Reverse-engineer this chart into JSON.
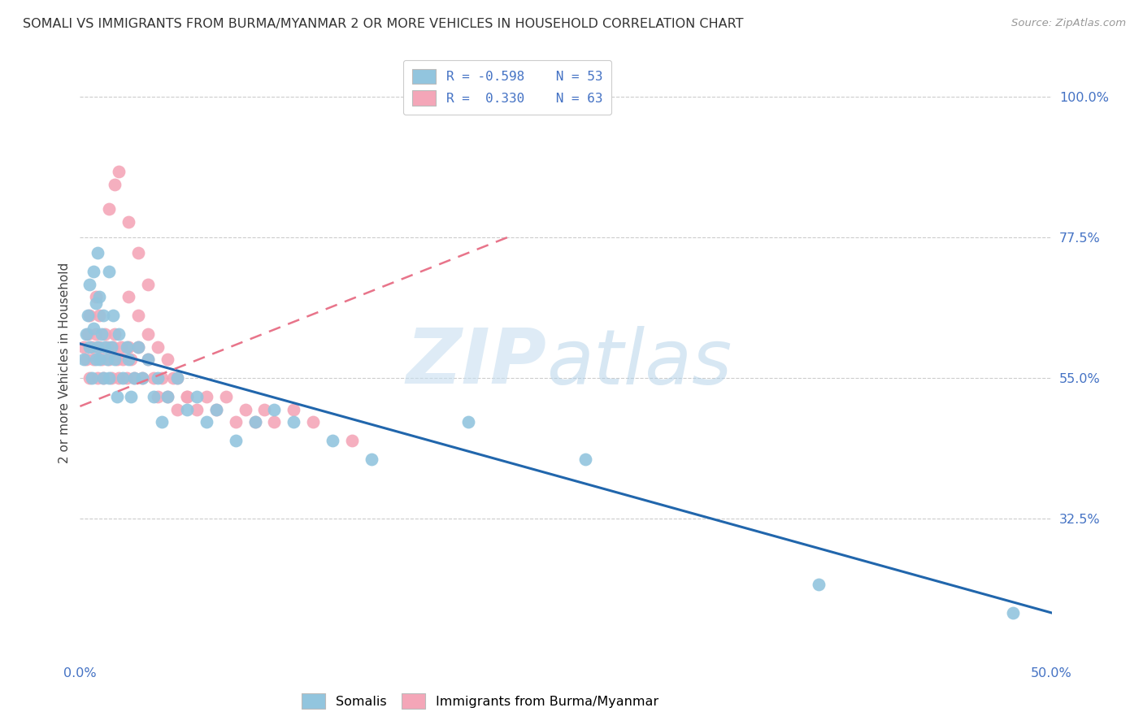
{
  "title": "SOMALI VS IMMIGRANTS FROM BURMA/MYANMAR 2 OR MORE VEHICLES IN HOUSEHOLD CORRELATION CHART",
  "source": "Source: ZipAtlas.com",
  "ylabel": "2 or more Vehicles in Household",
  "ytick_positions": [
    0.325,
    0.55,
    0.775,
    1.0
  ],
  "ytick_labels": [
    "32.5%",
    "55.0%",
    "77.5%",
    "100.0%"
  ],
  "xtick_positions": [
    0.0,
    0.5
  ],
  "xtick_labels": [
    "0.0%",
    "50.0%"
  ],
  "xmin": 0.0,
  "xmax": 0.5,
  "ymin": 0.1,
  "ymax": 1.05,
  "blue_color": "#92c5de",
  "pink_color": "#f4a6b8",
  "blue_line_color": "#2166ac",
  "pink_line_color": "#e8748a",
  "blue_line_x": [
    0.0,
    0.5
  ],
  "blue_line_y": [
    0.605,
    0.175
  ],
  "pink_line_x": [
    0.0,
    0.22
  ],
  "pink_line_y": [
    0.505,
    0.775
  ],
  "somali_x": [
    0.002,
    0.003,
    0.004,
    0.005,
    0.005,
    0.006,
    0.007,
    0.007,
    0.008,
    0.008,
    0.009,
    0.009,
    0.01,
    0.01,
    0.011,
    0.012,
    0.012,
    0.013,
    0.014,
    0.015,
    0.015,
    0.016,
    0.017,
    0.018,
    0.019,
    0.02,
    0.022,
    0.024,
    0.025,
    0.026,
    0.028,
    0.03,
    0.032,
    0.035,
    0.038,
    0.04,
    0.042,
    0.045,
    0.05,
    0.055,
    0.06,
    0.065,
    0.07,
    0.08,
    0.09,
    0.1,
    0.11,
    0.13,
    0.15,
    0.2,
    0.26,
    0.38,
    0.48
  ],
  "somali_y": [
    0.58,
    0.62,
    0.65,
    0.6,
    0.7,
    0.55,
    0.63,
    0.72,
    0.58,
    0.67,
    0.6,
    0.75,
    0.58,
    0.68,
    0.62,
    0.55,
    0.65,
    0.6,
    0.58,
    0.72,
    0.55,
    0.6,
    0.65,
    0.58,
    0.52,
    0.62,
    0.55,
    0.6,
    0.58,
    0.52,
    0.55,
    0.6,
    0.55,
    0.58,
    0.52,
    0.55,
    0.48,
    0.52,
    0.55,
    0.5,
    0.52,
    0.48,
    0.5,
    0.45,
    0.48,
    0.5,
    0.48,
    0.45,
    0.42,
    0.48,
    0.42,
    0.22,
    0.175
  ],
  "burma_x": [
    0.002,
    0.003,
    0.004,
    0.005,
    0.005,
    0.006,
    0.007,
    0.008,
    0.008,
    0.009,
    0.01,
    0.01,
    0.011,
    0.012,
    0.013,
    0.014,
    0.015,
    0.016,
    0.017,
    0.018,
    0.019,
    0.02,
    0.021,
    0.022,
    0.024,
    0.025,
    0.026,
    0.028,
    0.03,
    0.032,
    0.035,
    0.038,
    0.04,
    0.042,
    0.045,
    0.048,
    0.05,
    0.055,
    0.06,
    0.065,
    0.07,
    0.075,
    0.08,
    0.085,
    0.09,
    0.095,
    0.1,
    0.11,
    0.12,
    0.14,
    0.015,
    0.018,
    0.02,
    0.025,
    0.03,
    0.035,
    0.025,
    0.03,
    0.035,
    0.04,
    0.045,
    0.05,
    0.055
  ],
  "burma_y": [
    0.6,
    0.58,
    0.62,
    0.55,
    0.65,
    0.6,
    0.58,
    0.62,
    0.68,
    0.55,
    0.6,
    0.65,
    0.58,
    0.55,
    0.62,
    0.6,
    0.58,
    0.55,
    0.6,
    0.62,
    0.58,
    0.55,
    0.6,
    0.58,
    0.55,
    0.6,
    0.58,
    0.55,
    0.6,
    0.55,
    0.58,
    0.55,
    0.52,
    0.55,
    0.52,
    0.55,
    0.5,
    0.52,
    0.5,
    0.52,
    0.5,
    0.52,
    0.48,
    0.5,
    0.48,
    0.5,
    0.48,
    0.5,
    0.48,
    0.45,
    0.82,
    0.86,
    0.88,
    0.8,
    0.75,
    0.7,
    0.68,
    0.65,
    0.62,
    0.6,
    0.58,
    0.55,
    0.52
  ]
}
